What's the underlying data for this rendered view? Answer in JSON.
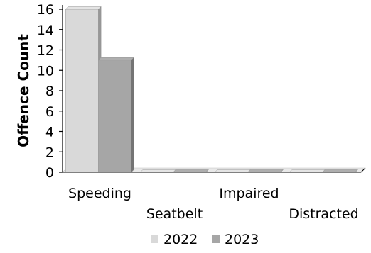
{
  "chart_data": {
    "type": "bar",
    "title": "",
    "xlabel": "",
    "ylabel": "Offence Count",
    "categories": [
      "Speeding",
      "Seatbelt",
      "Impaired",
      "Distracted"
    ],
    "series": [
      {
        "name": "2022",
        "values": [
          16,
          0,
          0,
          0
        ],
        "color": "#d9d9d9"
      },
      {
        "name": "2023",
        "values": [
          11,
          0,
          0,
          0
        ],
        "color": "#a6a6a6"
      }
    ],
    "yticks": [
      0,
      2,
      4,
      6,
      8,
      10,
      12,
      14,
      16
    ],
    "ylim": [
      0,
      16
    ],
    "grid": false,
    "legend": "bottom",
    "style": "3d-column"
  }
}
